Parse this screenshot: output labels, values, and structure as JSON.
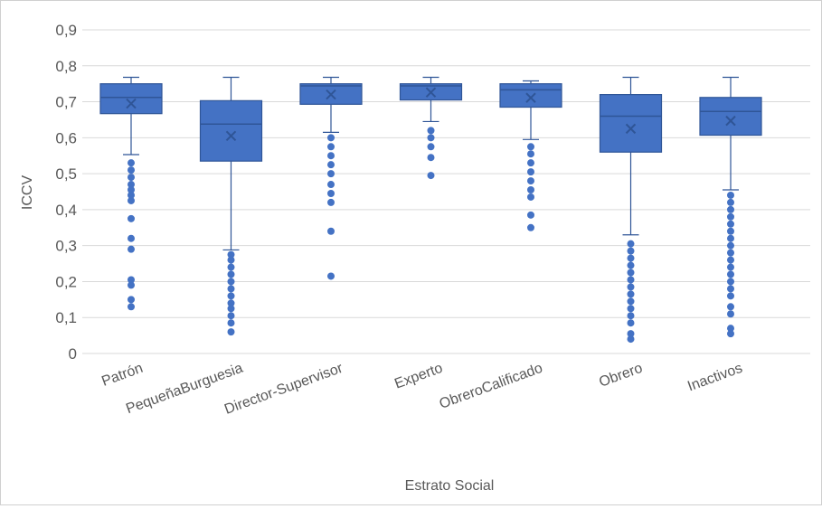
{
  "chart_data": {
    "type": "box",
    "xlabel": "Estrato Social",
    "ylabel": "ICCV",
    "ylim": [
      0,
      0.9
    ],
    "yticks": [
      "0",
      "0,1",
      "0,2",
      "0,3",
      "0,4",
      "0,5",
      "0,6",
      "0,7",
      "0,8",
      "0,9"
    ],
    "grid": true,
    "colors": {
      "box_fill": "#4472c4",
      "box_stroke": "#2f5597",
      "grid": "#d9d9d9",
      "text": "#595959"
    },
    "categories": [
      "Patrón",
      "PequeñaBurguesia",
      "Director-Supervisor",
      "Experto",
      "ObreroCalificado",
      "Obrero",
      "Inactivos"
    ],
    "boxes": [
      {
        "q1": 0.667,
        "median": 0.712,
        "q3": 0.75,
        "mean": 0.695,
        "whisker_low": 0.553,
        "whisker_high": 0.768,
        "outliers": [
          0.13,
          0.15,
          0.19,
          0.205,
          0.29,
          0.32,
          0.375,
          0.425,
          0.44,
          0.455,
          0.47,
          0.49,
          0.51,
          0.53
        ]
      },
      {
        "q1": 0.535,
        "median": 0.638,
        "q3": 0.703,
        "mean": 0.605,
        "whisker_low": 0.288,
        "whisker_high": 0.768,
        "outliers": [
          0.06,
          0.085,
          0.105,
          0.125,
          0.14,
          0.16,
          0.18,
          0.2,
          0.22,
          0.24,
          0.26,
          0.275
        ]
      },
      {
        "q1": 0.693,
        "median": 0.744,
        "q3": 0.75,
        "mean": 0.72,
        "whisker_low": 0.615,
        "whisker_high": 0.768,
        "outliers": [
          0.215,
          0.34,
          0.42,
          0.445,
          0.47,
          0.5,
          0.525,
          0.55,
          0.575,
          0.6
        ]
      },
      {
        "q1": 0.705,
        "median": 0.744,
        "q3": 0.75,
        "mean": 0.726,
        "whisker_low": 0.645,
        "whisker_high": 0.768,
        "outliers": [
          0.495,
          0.545,
          0.575,
          0.6,
          0.62
        ]
      },
      {
        "q1": 0.685,
        "median": 0.733,
        "q3": 0.75,
        "mean": 0.711,
        "whisker_low": 0.595,
        "whisker_high": 0.758,
        "outliers": [
          0.35,
          0.385,
          0.435,
          0.455,
          0.48,
          0.505,
          0.53,
          0.555,
          0.575
        ]
      },
      {
        "q1": 0.56,
        "median": 0.66,
        "q3": 0.72,
        "mean": 0.625,
        "whisker_low": 0.33,
        "whisker_high": 0.768,
        "outliers": [
          0.04,
          0.055,
          0.085,
          0.105,
          0.125,
          0.145,
          0.165,
          0.185,
          0.205,
          0.225,
          0.245,
          0.265,
          0.285,
          0.305
        ]
      },
      {
        "q1": 0.607,
        "median": 0.673,
        "q3": 0.712,
        "mean": 0.647,
        "whisker_low": 0.455,
        "whisker_high": 0.768,
        "outliers": [
          0.055,
          0.07,
          0.11,
          0.13,
          0.16,
          0.18,
          0.2,
          0.22,
          0.24,
          0.26,
          0.28,
          0.3,
          0.32,
          0.34,
          0.36,
          0.38,
          0.4,
          0.42,
          0.44
        ]
      }
    ]
  }
}
